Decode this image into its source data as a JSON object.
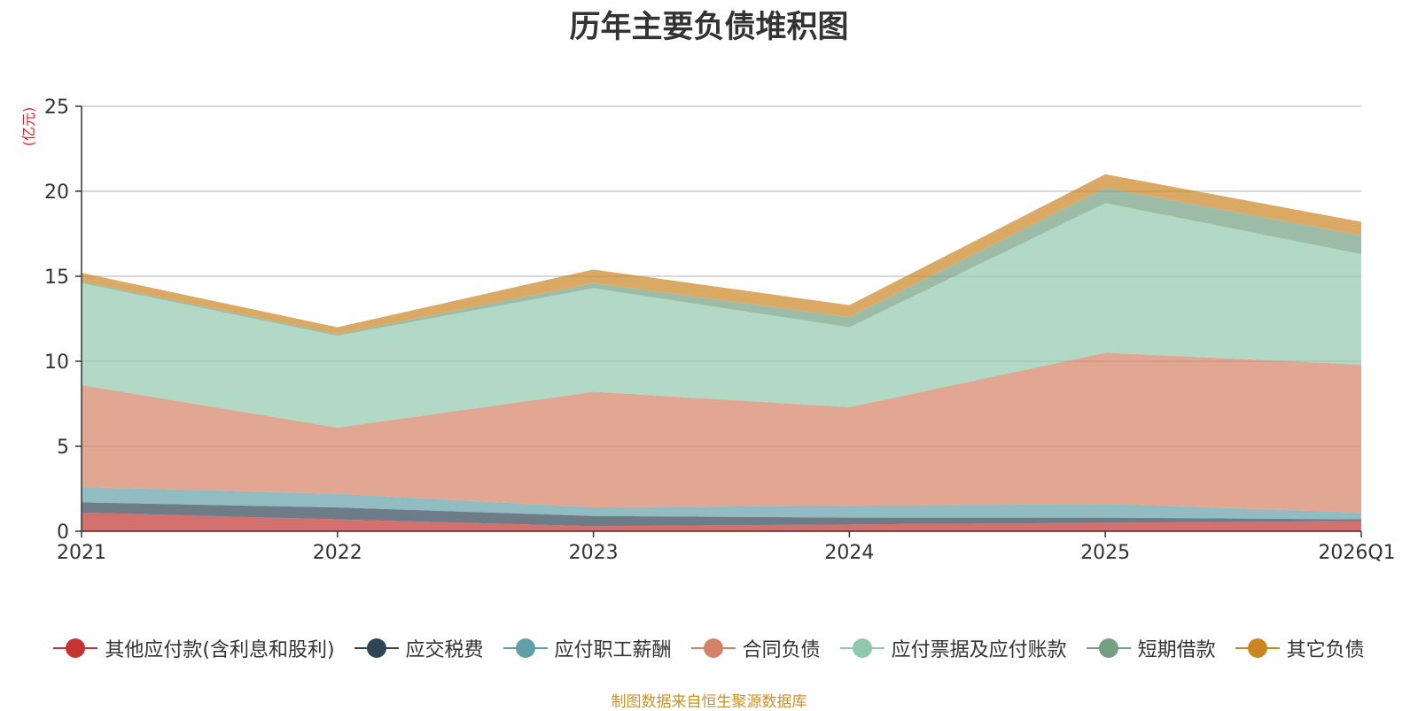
{
  "chart_data": {
    "type": "area",
    "stacked": true,
    "title": "历年主要负债堆积图",
    "unit": "(亿元)",
    "categories": [
      "2021",
      "2022",
      "2023",
      "2024",
      "2025",
      "2026Q1"
    ],
    "ylim": [
      0,
      25
    ],
    "yticks": [
      0,
      5,
      10,
      15,
      20,
      25
    ],
    "grid": true,
    "legend_position": "bottom",
    "series": [
      {
        "name": "其他应付款(含利息和股利)",
        "color": "#c23531",
        "values": [
          1.1,
          0.7,
          0.3,
          0.4,
          0.5,
          0.6
        ]
      },
      {
        "name": "应交税费",
        "color": "#2f4554",
        "values": [
          0.6,
          0.7,
          0.6,
          0.4,
          0.3,
          0.1
        ]
      },
      {
        "name": "应付职工薪酬",
        "color": "#61a0a8",
        "values": [
          0.9,
          0.8,
          0.5,
          0.7,
          0.8,
          0.4
        ]
      },
      {
        "name": "合同负债",
        "color": "#d48265",
        "values": [
          6.0,
          3.9,
          6.8,
          5.8,
          8.9,
          8.7
        ]
      },
      {
        "name": "应付票据及应付账款",
        "color": "#91c7ae",
        "values": [
          6.0,
          5.4,
          6.1,
          4.7,
          8.8,
          6.5
        ]
      },
      {
        "name": "短期借款",
        "color": "#749f83",
        "values": [
          0.1,
          0.1,
          0.3,
          0.6,
          0.9,
          1.1
        ]
      },
      {
        "name": "其它负债",
        "color": "#ca8622",
        "values": [
          0.5,
          0.4,
          0.8,
          0.7,
          0.8,
          0.8
        ]
      }
    ]
  },
  "source_note": "制图数据来自恒生聚源数据库"
}
